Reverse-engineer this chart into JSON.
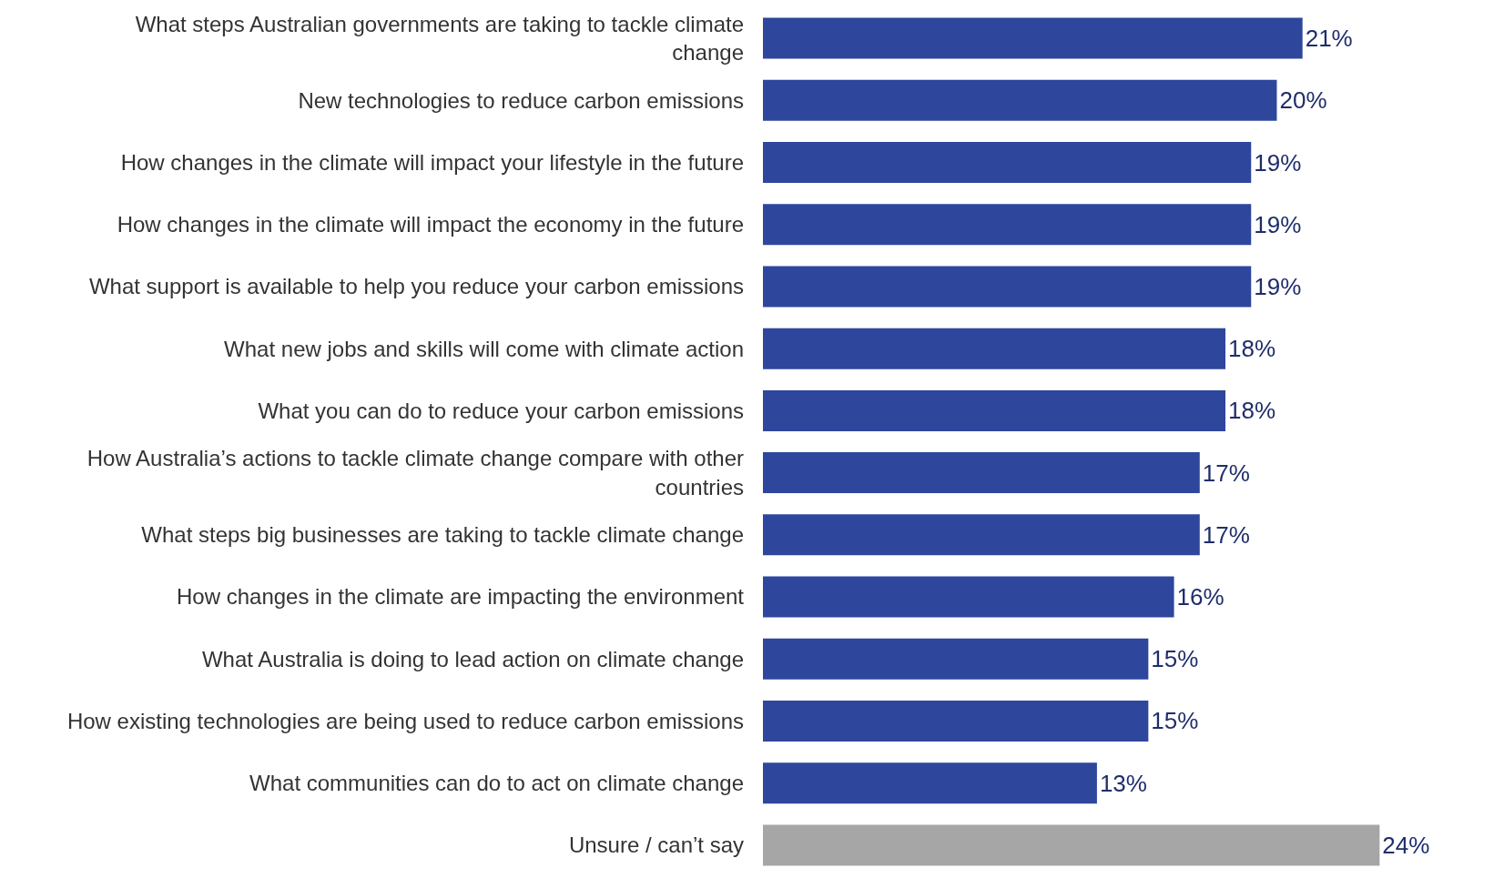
{
  "chart_data": {
    "type": "bar",
    "orientation": "horizontal",
    "categories": [
      "What steps Australian governments are taking to tackle climate change",
      "New technologies to reduce carbon emissions",
      "How changes in the climate will impact your lifestyle in the future",
      "How changes in the climate will impact the economy in the future",
      "What support is available to help you reduce your carbon emissions",
      "What new jobs and skills will come with climate action",
      "What you can do to reduce your carbon emissions",
      "How Australia’s actions to tackle climate change compare with other countries",
      "What steps big businesses are taking to tackle climate change",
      "How changes in the climate are impacting the environment",
      "What Australia is doing to lead action on climate change",
      "How existing technologies are being used to reduce carbon emissions",
      "What communities can do to act on climate change",
      "Unsure / can’t say"
    ],
    "values": [
      21,
      20,
      19,
      19,
      19,
      18,
      18,
      17,
      17,
      16,
      15,
      15,
      13,
      24
    ],
    "value_labels": [
      "21%",
      "20%",
      "19%",
      "19%",
      "19%",
      "18%",
      "18%",
      "17%",
      "17%",
      "16%",
      "15%",
      "15%",
      "13%",
      "24%"
    ],
    "colors": [
      "#2e479c",
      "#2e479c",
      "#2e479c",
      "#2e479c",
      "#2e479c",
      "#2e479c",
      "#2e479c",
      "#2e479c",
      "#2e479c",
      "#2e479c",
      "#2e479c",
      "#2e479c",
      "#2e479c",
      "#a6a6a6"
    ]
  }
}
